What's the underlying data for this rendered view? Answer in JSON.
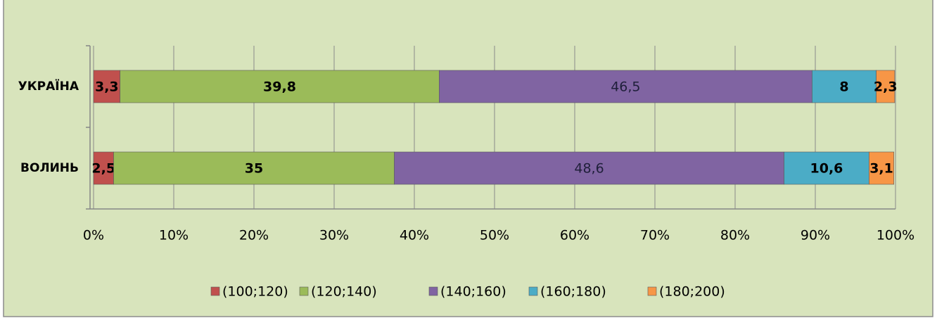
{
  "chart_data": {
    "type": "bar",
    "orientation": "horizontal",
    "stacked": true,
    "categories": [
      "УКРАЇНА",
      "ВОЛИНЬ"
    ],
    "series": [
      {
        "name": "(100;120)",
        "color": "#c0504d",
        "values": [
          3.3,
          2.5
        ],
        "value_labels": [
          "3,3",
          "2,5"
        ]
      },
      {
        "name": "(120;140)",
        "color": "#9bbb59",
        "values": [
          39.8,
          35
        ],
        "value_labels": [
          "39,8",
          "35"
        ]
      },
      {
        "name": "(140;160)",
        "color": "#8064a2",
        "values": [
          46.5,
          48.6
        ],
        "value_labels": [
          "46,5",
          "48,6"
        ]
      },
      {
        "name": "(160;180)",
        "color": "#4bacc6",
        "values": [
          8,
          10.6
        ],
        "value_labels": [
          "8",
          "10,6"
        ]
      },
      {
        "name": "(180;200)",
        "color": "#f79646",
        "values": [
          2.3,
          3.1
        ],
        "value_labels": [
          "2,3",
          "3,1"
        ]
      }
    ],
    "xlim": [
      0,
      100
    ],
    "xticks": [
      {
        "value": 0,
        "label": "0%"
      },
      {
        "value": 10,
        "label": "10%"
      },
      {
        "value": 20,
        "label": "20%"
      },
      {
        "value": 30,
        "label": "30%"
      },
      {
        "value": 40,
        "label": "40%"
      },
      {
        "value": 50,
        "label": "50%"
      },
      {
        "value": 60,
        "label": "60%"
      },
      {
        "value": 70,
        "label": "70%"
      },
      {
        "value": 80,
        "label": "80%"
      },
      {
        "value": 90,
        "label": "90%"
      },
      {
        "value": 100,
        "label": "100%"
      }
    ],
    "grid": true,
    "legend": "bottom"
  }
}
